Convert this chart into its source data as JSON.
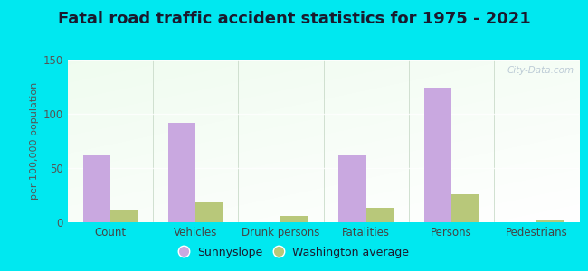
{
  "title": "Fatal road traffic accident statistics for 1975 - 2021",
  "categories": [
    "Count",
    "Vehicles",
    "Drunk persons",
    "Fatalities",
    "Persons",
    "Pedestrians"
  ],
  "sunnyslope_values": [
    62,
    92,
    0,
    62,
    124,
    0
  ],
  "washington_values": [
    12,
    18,
    6,
    13,
    26,
    2
  ],
  "sunnyslope_color": "#c9a8e0",
  "washington_color": "#b8c87a",
  "ylabel": "per 100,000 population",
  "ylim": [
    0,
    150
  ],
  "yticks": [
    0,
    50,
    100,
    150
  ],
  "outer_background": "#00e8f0",
  "title_fontsize": 13,
  "title_color": "#1a1a2e",
  "legend_labels": [
    "Sunnyslope",
    "Washington average"
  ],
  "watermark": "City-Data.com",
  "bar_width": 0.32
}
